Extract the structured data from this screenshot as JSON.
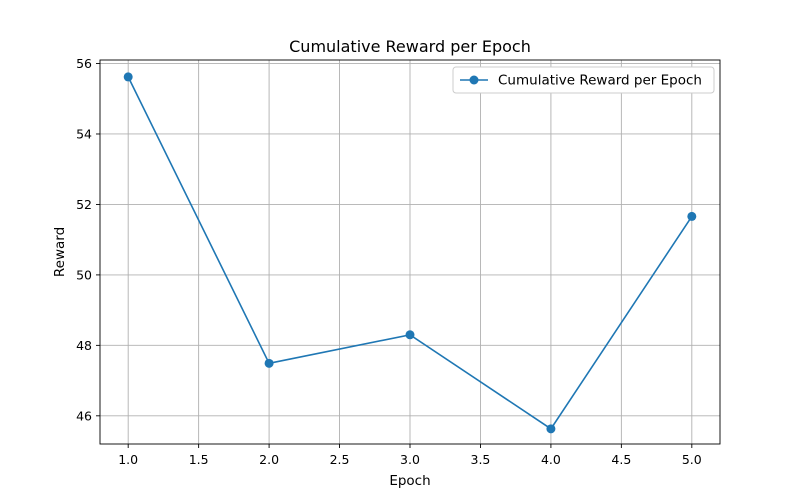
{
  "chart_data": {
    "type": "line",
    "title": "Cumulative Reward per Epoch",
    "xlabel": "Epoch",
    "ylabel": "Reward",
    "x": [
      1.0,
      2.0,
      3.0,
      4.0,
      5.0
    ],
    "series": [
      {
        "name": "Cumulative Reward per Epoch",
        "values": [
          55.62,
          47.49,
          48.3,
          45.63,
          51.66
        ],
        "color": "#1f77b4",
        "marker": "circle"
      }
    ],
    "xlim": [
      0.8,
      5.2
    ],
    "ylim": [
      45.2,
      56.1
    ],
    "xticks": [
      1.0,
      1.5,
      2.0,
      2.5,
      3.0,
      3.5,
      4.0,
      4.5,
      5.0
    ],
    "xtick_labels": [
      "1.0",
      "1.5",
      "2.0",
      "2.5",
      "3.0",
      "3.5",
      "4.0",
      "4.5",
      "5.0"
    ],
    "yticks": [
      46,
      48,
      50,
      52,
      54,
      56
    ],
    "ytick_labels": [
      "46",
      "48",
      "50",
      "52",
      "54",
      "56"
    ],
    "grid": true,
    "legend_position": "top-right"
  }
}
